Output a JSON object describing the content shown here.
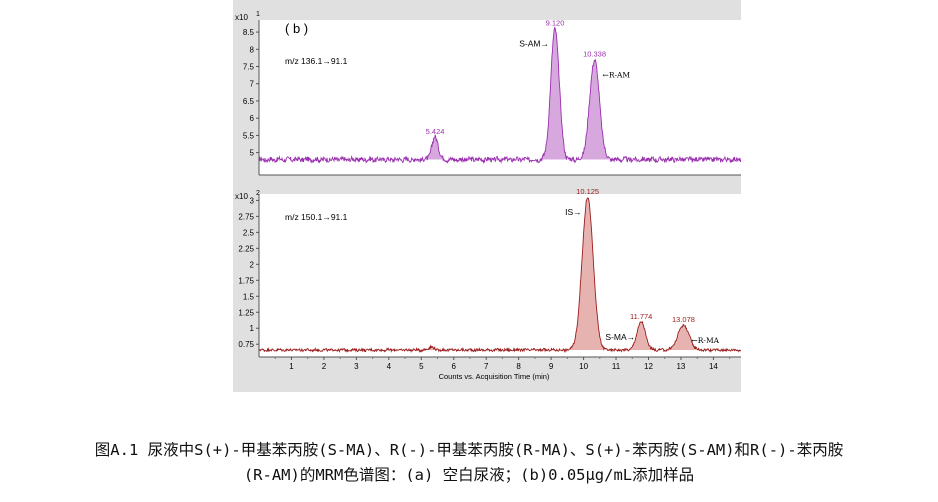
{
  "chart_data": [
    {
      "type": "line",
      "panel_label": "( b )",
      "scale_label": "x10",
      "scale_exponent": "1",
      "ion_label": "m/z 136.1→91.1",
      "xlim": [
        0,
        14.85
      ],
      "ylim": [
        4.35,
        8.85
      ],
      "yticks": [
        "5",
        "5.5",
        "6",
        "6.5",
        "7",
        "7.5",
        "8",
        "8.5"
      ],
      "grid": false,
      "line_color": "#9a2fb0",
      "fill_color": "#d7a8dd",
      "baseline": 4.8,
      "noise": 0.07,
      "peaks": [
        {
          "x": 5.424,
          "height": 5.45,
          "width": 0.1,
          "label": "5.424"
        },
        {
          "x": 9.12,
          "height": 8.6,
          "width": 0.13,
          "label": "9.120",
          "arrow_label": "S-AM→",
          "arrow_side": "left"
        },
        {
          "x": 10.338,
          "height": 7.7,
          "width": 0.15,
          "label": "10.338",
          "arrow_label": "←R-AM",
          "arrow_side": "right"
        }
      ]
    },
    {
      "type": "line",
      "scale_label": "x10",
      "scale_exponent": "2",
      "ion_label": "m/z 150.1→91.1",
      "xlabel": "Counts vs. Acquisition Time (min)",
      "xlim": [
        0,
        14.85
      ],
      "xticks": [
        "1",
        "2",
        "3",
        "4",
        "5",
        "6",
        "7",
        "8",
        "9",
        "10",
        "11",
        "12",
        "13",
        "14"
      ],
      "ylim": [
        0.55,
        3.1
      ],
      "yticks": [
        "0.75",
        "1",
        "1.25",
        "1.5",
        "1.75",
        "2",
        "2.25",
        "2.5",
        "2.75",
        "3"
      ],
      "grid": false,
      "line_color": "#9b1c1c",
      "fill_color": "#e7b3b0",
      "baseline": 0.66,
      "noise": 0.02,
      "peaks": [
        {
          "x": 5.3,
          "height": 0.71,
          "width": 0.08,
          "label": ""
        },
        {
          "x": 10.125,
          "height": 3.05,
          "width": 0.17,
          "label": "10.125",
          "arrow_label": "IS→",
          "arrow_side": "left"
        },
        {
          "x": 11.774,
          "height": 1.1,
          "width": 0.13,
          "label": "11.774",
          "arrow_label": "S-MA→",
          "arrow_side": "left"
        },
        {
          "x": 13.078,
          "height": 1.05,
          "width": 0.17,
          "label": "13.078",
          "arrow_label": "←R-MA",
          "arrow_side": "right"
        }
      ]
    }
  ],
  "caption": {
    "line1": "图A.1  尿液中S(+)-甲基苯丙胺(S-MA)、R(-)-甲基苯丙胺(R-MA)、S(+)-苯丙胺(S-AM)和R(-)-苯丙胺",
    "line2": "(R-AM)的MRM色谱图：(a) 空白尿液；(b)0.05μg/mL添加样品"
  }
}
